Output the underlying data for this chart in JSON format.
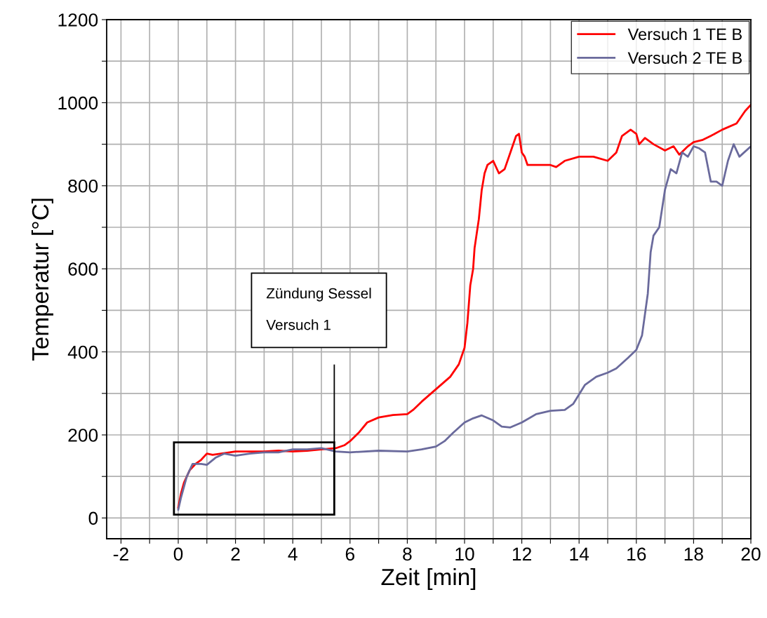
{
  "chart_data": {
    "type": "line",
    "xlabel": "Zeit [min]",
    "ylabel": "Temperatur [°C]",
    "xlim": [
      -2.5,
      20
    ],
    "ylim": [
      -50,
      1200
    ],
    "xticks": [
      -2,
      {
        "value": -1,
        "label": null
      },
      0,
      {
        "value": 1,
        "label": null
      },
      2,
      {
        "value": 3,
        "label": null
      },
      4,
      {
        "value": 5,
        "label": null
      },
      6,
      {
        "value": 7,
        "label": null
      },
      8,
      {
        "value": 9,
        "label": null
      },
      10,
      {
        "value": 11,
        "label": null
      },
      12,
      {
        "value": 13,
        "label": null
      },
      14,
      {
        "value": 15,
        "label": null
      },
      16,
      {
        "value": 17,
        "label": null
      },
      18,
      {
        "value": 19,
        "label": null
      },
      20
    ],
    "yticks": [
      0,
      {
        "value": 100,
        "label": null
      },
      200,
      {
        "value": 300,
        "label": null
      },
      400,
      {
        "value": 500,
        "label": null
      },
      600,
      {
        "value": 700,
        "label": null
      },
      800,
      {
        "value": 900,
        "label": null
      },
      1000,
      {
        "value": 1100,
        "label": null
      },
      1200
    ],
    "grid": true,
    "legend": "top right",
    "annotations": [
      "Zündung Sessel\n\nVersuch 1"
    ],
    "series": [
      {
        "name": "Versuch 1 TE B",
        "color": "#ff0000",
        "x": [
          0.0,
          0.1,
          0.2,
          0.4,
          0.6,
          0.8,
          1.0,
          1.2,
          1.5,
          2.0,
          2.5,
          3.0,
          3.5,
          4.0,
          4.5,
          5.0,
          5.5,
          5.8,
          6.0,
          6.3,
          6.6,
          7.0,
          7.5,
          8.0,
          8.2,
          8.5,
          9.0,
          9.5,
          9.8,
          10.0,
          10.1,
          10.2,
          10.3,
          10.35,
          10.5,
          10.6,
          10.7,
          10.8,
          11.0,
          11.2,
          11.4,
          11.6,
          11.8,
          11.9,
          12.0,
          12.1,
          12.2,
          12.5,
          13.0,
          13.2,
          13.5,
          14.0,
          14.5,
          15.0,
          15.3,
          15.5,
          15.8,
          16.0,
          16.1,
          16.3,
          16.6,
          17.0,
          17.3,
          17.5,
          17.8,
          18.0,
          18.3,
          18.6,
          19.0,
          19.5,
          19.8,
          20.0
        ],
        "values": [
          25,
          60,
          85,
          115,
          130,
          140,
          155,
          152,
          155,
          160,
          160,
          160,
          162,
          160,
          162,
          165,
          168,
          175,
          185,
          205,
          230,
          242,
          248,
          250,
          260,
          280,
          310,
          340,
          370,
          410,
          470,
          560,
          600,
          650,
          720,
          790,
          830,
          850,
          860,
          830,
          840,
          880,
          920,
          925,
          880,
          870,
          850,
          850,
          850,
          845,
          860,
          870,
          870,
          860,
          880,
          920,
          935,
          925,
          900,
          915,
          900,
          885,
          895,
          875,
          895,
          905,
          910,
          920,
          935,
          950,
          980,
          995
        ]
      },
      {
        "name": "Versuch 2 TE B",
        "color": "#6a6a9c",
        "x": [
          0.0,
          0.1,
          0.3,
          0.5,
          0.8,
          1.0,
          1.3,
          1.6,
          2.0,
          2.5,
          3.0,
          3.5,
          4.0,
          4.5,
          5.0,
          5.5,
          6.0,
          7.0,
          8.0,
          8.5,
          9.0,
          9.3,
          9.6,
          10.0,
          10.3,
          10.6,
          11.0,
          11.3,
          11.6,
          12.0,
          12.5,
          13.0,
          13.5,
          13.8,
          14.2,
          14.6,
          15.0,
          15.3,
          15.7,
          16.0,
          16.2,
          16.4,
          16.5,
          16.6,
          16.8,
          17.0,
          17.2,
          17.4,
          17.6,
          17.8,
          18.0,
          18.2,
          18.4,
          18.6,
          18.8,
          19.0,
          19.2,
          19.4,
          19.6,
          20.0
        ],
        "values": [
          20,
          50,
          100,
          130,
          130,
          128,
          145,
          155,
          150,
          155,
          158,
          158,
          165,
          165,
          168,
          160,
          158,
          162,
          160,
          165,
          172,
          185,
          205,
          230,
          240,
          247,
          235,
          220,
          218,
          230,
          250,
          258,
          260,
          275,
          320,
          340,
          350,
          360,
          385,
          405,
          440,
          540,
          640,
          680,
          700,
          790,
          840,
          830,
          880,
          870,
          895,
          890,
          880,
          810,
          810,
          800,
          860,
          900,
          870,
          895
        ]
      }
    ]
  }
}
